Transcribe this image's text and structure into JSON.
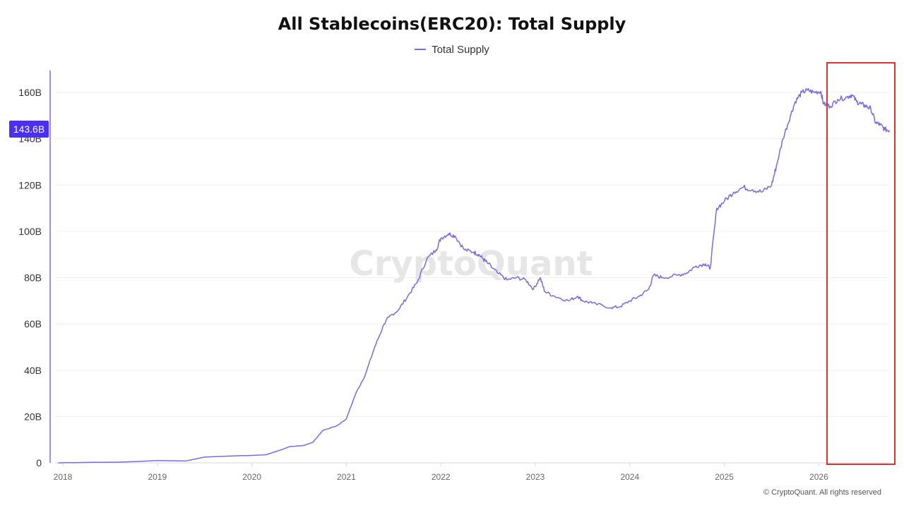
{
  "colors": {
    "line": "#7b68ee",
    "tag": "#4a2ff5",
    "highlight_box": "#e03030",
    "grid": "#f0f0f0",
    "axis": "#d8d8d8"
  },
  "copyright": "© CryptoQuant. All rights reserved",
  "watermark": "CryptoQuant",
  "chart_data": {
    "type": "line",
    "title": "All Stablecoins(ERC20): Total Supply",
    "xlabel": "",
    "ylabel": "",
    "legend_position": "top-center",
    "grid": true,
    "ylim": [
      0,
      170
    ],
    "xlim": [
      2017.95,
      2026.75
    ],
    "y_ticks": [
      0,
      20,
      40,
      60,
      80,
      100,
      120,
      140,
      160
    ],
    "y_tick_labels": [
      "0",
      "20B",
      "40B",
      "60B",
      "80B",
      "100B",
      "120B",
      "140B",
      "160B"
    ],
    "x_ticks": [
      2018,
      2019,
      2020,
      2021,
      2022,
      2023,
      2024,
      2025,
      2026
    ],
    "x_tick_labels": [
      "2018",
      "2019",
      "2020",
      "2021",
      "2022",
      "2023",
      "2024",
      "2025",
      "2026"
    ],
    "current_value_label": "143.6B",
    "highlight": {
      "x_range": [
        2026.1,
        2026.8
      ],
      "y_range": [
        0,
        172
      ]
    },
    "series": [
      {
        "name": "Total Supply",
        "x": [
          2017.95,
          2018.3,
          2018.6,
          2018.8,
          2019.0,
          2019.3,
          2019.5,
          2019.8,
          2020.0,
          2020.15,
          2020.3,
          2020.4,
          2020.55,
          2020.65,
          2020.75,
          2020.9,
          2021.0,
          2021.1,
          2021.2,
          2021.3,
          2021.4,
          2021.45,
          2021.55,
          2021.65,
          2021.75,
          2021.85,
          2021.95,
          2022.0,
          2022.08,
          2022.15,
          2022.25,
          2022.35,
          2022.4,
          2022.45,
          2022.5,
          2022.6,
          2022.7,
          2022.8,
          2022.9,
          2022.98,
          2023.05,
          2023.1,
          2023.2,
          2023.35,
          2023.45,
          2023.5,
          2023.6,
          2023.8,
          2023.9,
          2024.0,
          2024.1,
          2024.2,
          2024.25,
          2024.35,
          2024.5,
          2024.6,
          2024.7,
          2024.8,
          2024.85,
          2024.92,
          2025.0,
          2025.1,
          2025.2,
          2025.3,
          2025.4,
          2025.5,
          2025.55,
          2025.62,
          2025.7,
          2025.75,
          2025.82,
          2025.88,
          2025.95,
          2026.02,
          2026.05,
          2026.12,
          2026.2,
          2026.3,
          2026.35,
          2026.4,
          2026.45,
          2026.5,
          2026.55,
          2026.6,
          2026.65,
          2026.7,
          2026.75
        ],
        "values": [
          0,
          0.2,
          0.3,
          0.6,
          1.0,
          0.8,
          2.5,
          3.0,
          3.2,
          3.5,
          5.5,
          7.0,
          7.5,
          9.0,
          14.0,
          16.0,
          19.0,
          30.0,
          38.0,
          50.0,
          60.0,
          63.0,
          66.0,
          72.0,
          78.0,
          88.0,
          92.0,
          97.0,
          99.0,
          98.0,
          92.0,
          91.0,
          90.0,
          88.0,
          86.0,
          82.0,
          79.0,
          80.0,
          79.0,
          75.0,
          80.0,
          74.0,
          72.0,
          70.0,
          72.0,
          70.0,
          69.0,
          67.0,
          67.5,
          70.0,
          72.0,
          75.0,
          81.0,
          80.0,
          81.0,
          82.0,
          85.0,
          86.0,
          84.0,
          110.0,
          113.0,
          117.0,
          119.0,
          118.0,
          117.0,
          120.0,
          128.0,
          140.0,
          150.0,
          156.0,
          160.0,
          161.0,
          160.0,
          160.5,
          155.0,
          154.0,
          157.0,
          158.0,
          159.0,
          156.0,
          155.0,
          154.0,
          153.0,
          147.0,
          146.0,
          144.0,
          143.6
        ]
      }
    ]
  }
}
